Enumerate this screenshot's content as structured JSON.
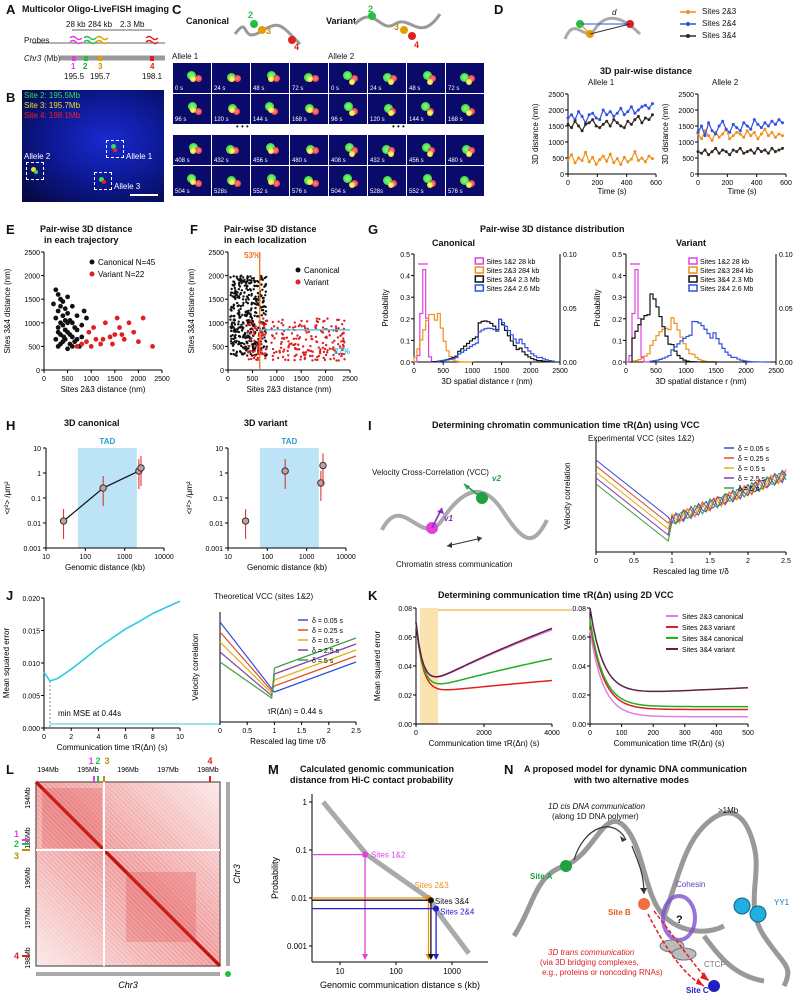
{
  "figure": {
    "A": {
      "label": "A",
      "title": "Multicolor Oligo-LiveFISH imaging",
      "probes": "Probes",
      "d1": "28 kb",
      "d2": "284 kb",
      "d3": "2.3 Mb",
      "chr": "Chr3",
      "chr_unit": "(Mb)",
      "sites": [
        "1",
        "2",
        "3",
        "4"
      ],
      "pos": [
        "195.5",
        "195.7",
        "198.1"
      ]
    },
    "B": {
      "label": "B",
      "legend": [
        "Site 2: 195.5Mb",
        "Site 3: 195.7Mb",
        "Site 4: 198.1Mb"
      ],
      "alleles": [
        "Allele 1",
        "Allele 2",
        "Allele 3"
      ]
    },
    "C": {
      "label": "C",
      "canonical": "Canonical",
      "variant": "Variant",
      "allele1": "Allele 1",
      "allele2": "Allele 2",
      "times": [
        [
          "0 s",
          "24 s",
          "48 s",
          "72 s"
        ],
        [
          "96 s",
          "120 s",
          "144 s",
          "168 s"
        ],
        [
          "408 s",
          "432 s",
          "456 s",
          "480 s"
        ],
        [
          "504 s",
          "528s",
          "552 s",
          "576 s"
        ]
      ],
      "ellipsis": "• • •"
    },
    "D": {
      "label": "D",
      "title": "3D pair-wise distance",
      "dlabel": "d",
      "legend": [
        "Sites 2&3",
        "Sites 2&4",
        "Sites 3&4"
      ],
      "allele1": "Allele 1",
      "allele2": "Allele 2",
      "ylabel": "3D distance (nm)",
      "xlabel": "Time (s)",
      "yticks": [
        "0",
        "500",
        "1000",
        "1500",
        "2000",
        "2500"
      ],
      "xticks": [
        "0",
        "200",
        "400",
        "600"
      ]
    },
    "E": {
      "label": "E",
      "title1": "Pair-wise 3D distance",
      "title2": "in each trajectory",
      "legend": [
        "Canonical N=45",
        "Variant N=22"
      ],
      "ylabel": "Sites 3&4 distance (nm)",
      "xlabel": "Sites 2&3 distance (nm)",
      "ticks": [
        "0",
        "500",
        "1000",
        "1500",
        "2000",
        "2500"
      ]
    },
    "F": {
      "label": "F",
      "title1": "Pair-wise 3D distance",
      "title2": "in each localization",
      "legend": [
        "Canonical",
        "Variant"
      ],
      "pct1": "53%",
      "pct2": "27%",
      "ylabel": "Sites 3&4 distance (nm)",
      "xlabel": "Sites 2&3 distance (nm)",
      "ticks": [
        "0",
        "500",
        "1000",
        "1500",
        "2000",
        "2500"
      ]
    },
    "G": {
      "label": "G",
      "title": "Pair-wise 3D distance distribution",
      "canonical": "Canonical",
      "variant": "Variant",
      "legend": [
        "Sites 1&2 28 kb",
        "Sites 2&3 284 kb",
        "Sites 3&4 2.3 Mb",
        "Sites 2&4 2.6 Mb"
      ],
      "ylabel": "Probability",
      "xlabel": "3D spatial distance r (nm)",
      "yl": [
        "0.0",
        "0.1",
        "0.2",
        "0.3",
        "0.4",
        "0.5"
      ],
      "yr": [
        "0.00",
        "0.05",
        "0.10"
      ],
      "xticks": [
        "0",
        "500",
        "1000",
        "1500",
        "2000",
        "2500"
      ]
    },
    "H": {
      "label": "H",
      "canonical": "3D canonical",
      "variant": "3D variant",
      "tad": "TAD",
      "ylabel": "<r²> /μm²",
      "xlabel": "Genomic distance (kb)",
      "yticks": [
        "10",
        "1",
        "0.1",
        "0.01",
        "0.001"
      ],
      "xticks": [
        "10",
        "100",
        "1000",
        "10000"
      ]
    },
    "I": {
      "label": "I",
      "title": "Determining chromatin communication time τR(Δn) using VCC",
      "vcc": "Velocity Cross-Correlation (VCC)",
      "v1": "v1",
      "v2": "v2",
      "stress": "Chromatin stress communication",
      "plot_title": "Experimental VCC (sites 1&2)",
      "legend": [
        "δ = 0.05 s",
        "δ = 0.25 s",
        "δ = 0.5 s",
        "δ = 2.5 s",
        "δ = 5 s"
      ],
      "ylabel": "Velocity correlation",
      "xlabel": "Rescaled lag time τ/δ",
      "xticks": [
        "0",
        "0.5",
        "1",
        "1.5",
        "2",
        "2.5"
      ]
    },
    "J": {
      "label": "J",
      "ylabel": "Mean squared error",
      "xlabel": "Communication time τR(Δn) (s)",
      "yticks": [
        "0.000",
        "0.005",
        "0.010",
        "0.015",
        "0.020"
      ],
      "xticks": [
        "0",
        "2",
        "4",
        "6",
        "8",
        "10"
      ],
      "min_label": "min MSE at 0.44s",
      "plot_title": "Theoretical VCC (sites 1&2)",
      "legend": [
        "δ = 0.05 s",
        "δ = 0.25 s",
        "δ = 0.5 s",
        "δ = 2.5 s",
        "δ = 5 s"
      ],
      "tau_label": "τR(Δn) = 0.44 s",
      "vlabel": "Velocity correlation",
      "vxlabel": "Rescaled lag time τ/δ",
      "vxticks": [
        "0",
        "0.5",
        "1",
        "1.5",
        "2",
        "2.5"
      ]
    },
    "K": {
      "label": "K",
      "title": "Determining communication time τR(Δn) using 2D VCC",
      "ylabel": "Mean squared error",
      "xlabel": "Communication time τR(Δn) (s)",
      "yticks": [
        "0.00",
        "0.02",
        "0.04",
        "0.06",
        "0.08"
      ],
      "xticks1": [
        "0",
        "2000",
        "4000"
      ],
      "xticks2": [
        "0",
        "100",
        "200",
        "300",
        "400",
        "500"
      ],
      "legend": [
        "Sites 2&3 canonical",
        "Sites 2&3 variant",
        "Sites 3&4 canonical",
        "Sites 3&4 variant"
      ]
    },
    "L": {
      "label": "L",
      "top_ticks": [
        "194Mb",
        "195Mb",
        "196Mb",
        "197Mb",
        "198Mb"
      ],
      "left_ticks": [
        "194Mb",
        "195Mb",
        "196Mb",
        "197Mb",
        "198Mb"
      ],
      "chr": "Chr3",
      "sites": [
        "1",
        "2",
        "3",
        "4"
      ]
    },
    "M": {
      "label": "M",
      "title1": "Calculated genomic communication",
      "title2": "distance from Hi-C contact probability",
      "ylabel": "Probability",
      "xlabel": "Genomic communication distance s (kb)",
      "yticks": [
        "1",
        "0.1",
        "0.01",
        "0.001"
      ],
      "xticks": [
        "10",
        "100",
        "1000"
      ],
      "points": [
        "Sites 1&2",
        "Sites 2&3",
        "Sites 3&4",
        "Sites 2&4"
      ]
    },
    "N": {
      "label": "N",
      "title1": "A proposed model for dynamic DNA communication",
      "title2": "with two alternative modes",
      "cis1": "1D cis DNA communication",
      "cis2": "(along 1D DNA polymer)",
      "mb": ">1Mb",
      "siteA": "Site A",
      "siteB": "Site B",
      "siteC": "Site C",
      "cohesin": "Cohesin",
      "yy1": "YY1",
      "ctcf": "CTCF",
      "q": "?",
      "trans1": "3D trans communication",
      "trans2": "(via 3D bridging complexes,",
      "trans3": "e.g., proteins or noncoding RNAs)"
    }
  },
  "chart_data": [
    {
      "type": "line",
      "title": "3D pair-wise distance Allele 1",
      "xlabel": "Time (s)",
      "ylabel": "3D distance (nm)",
      "ylim": [
        0,
        2500
      ],
      "xlim": [
        0,
        600
      ],
      "x": [
        0,
        24,
        48,
        72,
        96,
        120,
        144,
        168,
        192,
        216,
        240,
        264,
        288,
        312,
        336,
        360,
        384,
        408,
        432,
        456,
        480,
        504,
        528,
        552,
        576
      ],
      "series": [
        {
          "name": "Sites 2&3",
          "values": [
            450,
            600,
            350,
            500,
            420,
            680,
            380,
            520,
            300,
            450,
            560,
            400,
            620,
            350,
            480,
            300,
            520,
            380,
            460,
            700,
            420,
            500,
            380,
            560,
            480
          ]
        },
        {
          "name": "Sites 2&4",
          "values": [
            1750,
            1850,
            1700,
            1950,
            1800,
            1600,
            1850,
            1900,
            1750,
            1700,
            2000,
            1850,
            1950,
            1800,
            1900,
            2050,
            1850,
            1950,
            2100,
            1900,
            2000,
            2100,
            2150,
            2050,
            2200
          ]
        },
        {
          "name": "Sites 3&4",
          "values": [
            1550,
            1450,
            1650,
            1500,
            1350,
            1550,
            1600,
            1700,
            1500,
            1450,
            1550,
            1650,
            1500,
            1700,
            1600,
            1500,
            1450,
            1650,
            1550,
            1700,
            1800,
            1600,
            1750,
            1700,
            1850
          ]
        }
      ]
    },
    {
      "type": "line",
      "title": "3D pair-wise distance Allele 2",
      "xlabel": "Time (s)",
      "ylabel": "3D distance (nm)",
      "ylim": [
        0,
        2500
      ],
      "xlim": [
        0,
        600
      ],
      "x": [
        0,
        24,
        48,
        72,
        96,
        120,
        144,
        168,
        192,
        216,
        240,
        264,
        288,
        312,
        336,
        360,
        384,
        408,
        432,
        456,
        480,
        504,
        528,
        552,
        576
      ],
      "series": [
        {
          "name": "Sites 2&3",
          "values": [
            1250,
            1100,
            1350,
            1200,
            1050,
            1300,
            1150,
            1250,
            1400,
            1100,
            1200,
            1300,
            1250,
            1150,
            1350,
            1200,
            1300,
            1100,
            1250,
            1400,
            1200,
            1300,
            1150,
            1250,
            1200
          ]
        },
        {
          "name": "Sites 2&4",
          "values": [
            1300,
            1500,
            1200,
            1600,
            1350,
            1250,
            1500,
            1650,
            1400,
            1300,
            1550,
            1450,
            1350,
            1600,
            1500,
            1400,
            1700,
            1550,
            1450,
            1600,
            1500,
            1650,
            1550,
            1700,
            1600
          ]
        },
        {
          "name": "Sites 3&4",
          "values": [
            700,
            650,
            750,
            600,
            700,
            800,
            650,
            750,
            700,
            600,
            750,
            700,
            800,
            650,
            700,
            750,
            650,
            800,
            700,
            750,
            650,
            800,
            700,
            750,
            800
          ]
        }
      ]
    },
    {
      "type": "scatter",
      "title": "Pair-wise 3D distance in each trajectory",
      "xlabel": "Sites 2&3 distance (nm)",
      "ylabel": "Sites 3&4 distance (nm)",
      "xlim": [
        0,
        2500
      ],
      "ylim": [
        0,
        2500
      ],
      "series": [
        {
          "name": "Canonical N=45",
          "points": [
            [
              250,
              1700
            ],
            [
              300,
              1600
            ],
            [
              350,
              1500
            ],
            [
              200,
              1400
            ],
            [
              400,
              1450
            ],
            [
              450,
              1300
            ],
            [
              300,
              1250
            ],
            [
              500,
              1200
            ],
            [
              250,
              1100
            ],
            [
              350,
              1000
            ],
            [
              550,
              1050
            ],
            [
              400,
              950
            ],
            [
              600,
              1000
            ],
            [
              300,
              900
            ],
            [
              450,
              850
            ],
            [
              500,
              800
            ],
            [
              700,
              850
            ],
            [
              350,
              750
            ],
            [
              600,
              700
            ],
            [
              250,
              650
            ],
            [
              450,
              650
            ],
            [
              800,
              700
            ],
            [
              400,
              600
            ],
            [
              550,
              550
            ],
            [
              300,
              500
            ],
            [
              650,
              600
            ],
            [
              500,
              450
            ],
            [
              750,
              500
            ],
            [
              350,
              1350
            ],
            [
              600,
              1350
            ],
            [
              700,
              1150
            ],
            [
              850,
              1250
            ],
            [
              500,
              1550
            ],
            [
              400,
              1150
            ],
            [
              650,
              900
            ],
            [
              550,
              750
            ],
            [
              800,
              950
            ],
            [
              900,
              1100
            ],
            [
              300,
              800
            ],
            [
              450,
              1050
            ],
            [
              700,
              650
            ],
            [
              350,
              550
            ],
            [
              600,
              500
            ],
            [
              500,
              1000
            ],
            [
              420,
              700
            ]
          ]
        },
        {
          "name": "Variant N=22",
          "points": [
            [
              700,
              500
            ],
            [
              800,
              550
            ],
            [
              900,
              600
            ],
            [
              1000,
              500
            ],
            [
              1100,
              650
            ],
            [
              1200,
              550
            ],
            [
              1300,
              1000
            ],
            [
              1400,
              700
            ],
            [
              1500,
              750
            ],
            [
              1600,
              900
            ],
            [
              1700,
              650
            ],
            [
              1800,
              1000
            ],
            [
              1900,
              800
            ],
            [
              2000,
              600
            ],
            [
              2100,
              1100
            ],
            [
              2300,
              500
            ],
            [
              950,
              800
            ],
            [
              1050,
              900
            ],
            [
              1250,
              650
            ],
            [
              1450,
              550
            ],
            [
              1550,
              1100
            ],
            [
              1650,
              750
            ]
          ]
        }
      ]
    },
    {
      "type": "scatter",
      "title": "Pair-wise 3D distance in each localization",
      "xlabel": "Sites 2&3 distance (nm)",
      "ylabel": "Sites 3&4 distance (nm)",
      "xlim": [
        0,
        2500
      ],
      "ylim": [
        0,
        2500
      ],
      "annotations": [
        "53%",
        "27%"
      ],
      "series": [
        {
          "name": "Canonical"
        },
        {
          "name": "Variant"
        }
      ]
    },
    {
      "type": "line",
      "title": "3D variant <r2>",
      "xlabel": "Genomic distance (kb)",
      "ylabel": "<r2> /um2",
      "series": [
        {
          "name": "variant",
          "x": [
            28,
            284,
            2300,
            2600
          ],
          "values": [
            0.012,
            1.2,
            0.4,
            2.0
          ]
        }
      ]
    },
    {
      "type": "line",
      "title": "3D canonical <r2>",
      "xlabel": "Genomic distance (kb)",
      "ylabel": "<r2> /um2",
      "series": [
        {
          "name": "canonical",
          "x": [
            28,
            284,
            2300,
            2600
          ],
          "values": [
            0.012,
            0.25,
            1.2,
            1.6
          ]
        }
      ]
    },
    {
      "type": "line",
      "title": "Mean squared error",
      "xlabel": "Communication time tauR (s)",
      "ylabel": "Mean squared error",
      "xlim": [
        0,
        10
      ],
      "ylim": [
        0,
        0.02
      ],
      "series": [
        {
          "name": "MSE",
          "x": [
            0,
            0.44,
            1,
            2,
            3,
            4,
            5,
            6,
            7,
            8,
            9,
            10
          ],
          "values": [
            0.009,
            0.0076,
            0.008,
            0.0095,
            0.0112,
            0.013,
            0.0145,
            0.016,
            0.0172,
            0.0185,
            0.0195,
            0.0205
          ]
        }
      ]
    },
    {
      "type": "line",
      "title": "Calculated genomic communication distance",
      "xlabel": "Genomic communication distance s (kb)",
      "ylabel": "Probability",
      "series": [
        {
          "name": "Hi-C",
          "x": [
            5,
            30,
            380,
            420,
            500,
            2000
          ],
          "values": [
            1,
            0.08,
            0.01,
            0.009,
            0.006,
            0.0007
          ]
        }
      ]
    }
  ]
}
